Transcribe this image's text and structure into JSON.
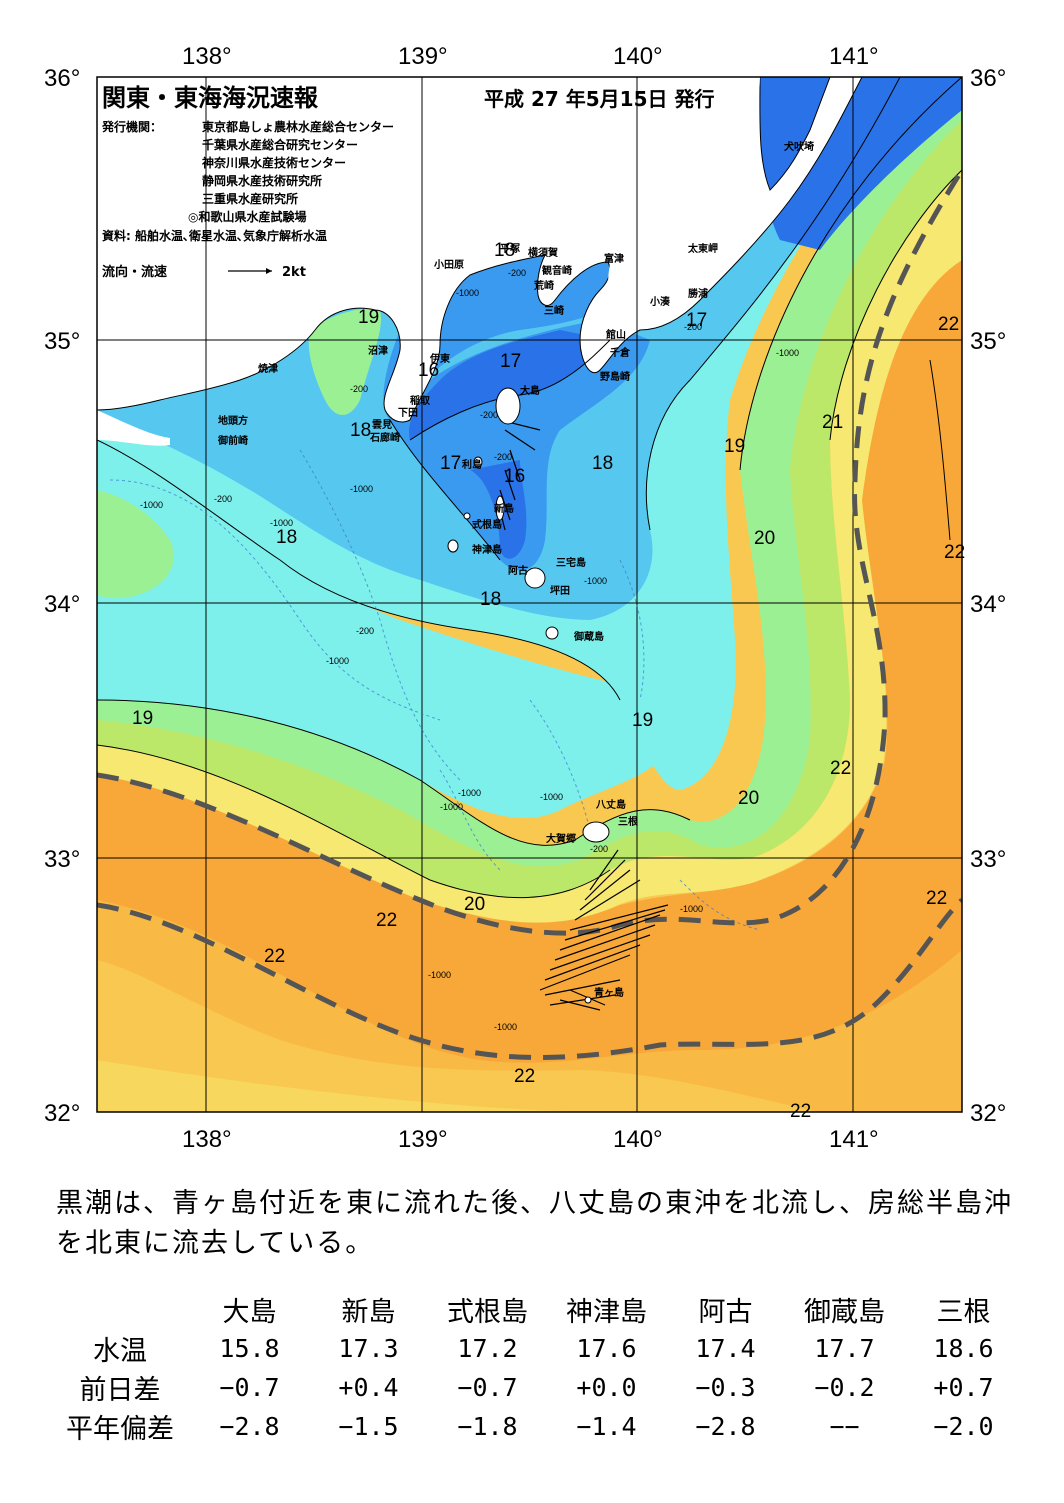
{
  "header": {
    "title": "関東・東海海況速報",
    "date": "平成 27 年5月15日 発行",
    "issuer_label": "発行機関：",
    "issuers": [
      "東京都島しょ農林水産総合センター",
      "千葉県水産総合研究センター",
      "神奈川県水産技術センター",
      "静岡県水産技術研究所",
      "三重県水産研究所",
      "◎和歌山県水産試験場"
    ],
    "source": "資料: 船舶水温､衛星水温､気象庁解析水温",
    "legend_label": "流向・流速",
    "legend_speed": "2kt"
  },
  "axes": {
    "lon_labels": [
      "138°",
      "139°",
      "140°",
      "141°"
    ],
    "lat_labels": [
      "36°",
      "35°",
      "34°",
      "33°",
      "32°"
    ]
  },
  "places": [
    {
      "id": "inubosaki",
      "name": "犬吠埼"
    },
    {
      "id": "taitomisaki",
      "name": "太東岬"
    },
    {
      "id": "katsuura",
      "name": "勝浦"
    },
    {
      "id": "kominato",
      "name": "小湊"
    },
    {
      "id": "futtsu",
      "name": "富津"
    },
    {
      "id": "yokosuka",
      "name": "横須賀"
    },
    {
      "id": "kannonzaki",
      "name": "観音崎"
    },
    {
      "id": "arasaki",
      "name": "荒崎"
    },
    {
      "id": "misaki",
      "name": "三崎"
    },
    {
      "id": "tateyama",
      "name": "館山"
    },
    {
      "id": "chikura",
      "name": "千倉"
    },
    {
      "id": "nojimazaki",
      "name": "野島崎"
    },
    {
      "id": "odawara",
      "name": "小田原"
    },
    {
      "id": "hiratsuka",
      "name": "平塚"
    },
    {
      "id": "ito",
      "name": "伊東"
    },
    {
      "id": "inatori",
      "name": "稲取"
    },
    {
      "id": "shimoda",
      "name": "下田"
    },
    {
      "id": "kumomi",
      "name": "雲見"
    },
    {
      "id": "irozaki",
      "name": "石廊崎"
    },
    {
      "id": "numazu",
      "name": "沼津"
    },
    {
      "id": "yaizu",
      "name": "焼津"
    },
    {
      "id": "jitogata",
      "name": "地頭方"
    },
    {
      "id": "omaezaki",
      "name": "御前崎"
    },
    {
      "id": "oshima",
      "name": "大島"
    },
    {
      "id": "toshima",
      "name": "利島"
    },
    {
      "id": "niijima",
      "name": "新島"
    },
    {
      "id": "shikinejima",
      "name": "式根島"
    },
    {
      "id": "kozushima",
      "name": "神津島"
    },
    {
      "id": "ako",
      "name": "阿古"
    },
    {
      "id": "miyakejima",
      "name": "三宅島"
    },
    {
      "id": "tsubota",
      "name": "坪田"
    },
    {
      "id": "mikurajima",
      "name": "御蔵島"
    },
    {
      "id": "hachijojima",
      "name": "八丈島"
    },
    {
      "id": "mitsune",
      "name": "三根"
    },
    {
      "id": "okago",
      "name": "大賀郷"
    },
    {
      "id": "aogashima",
      "name": "青ヶ島"
    }
  ],
  "isotherm_labels": [
    "16",
    "16",
    "17",
    "17",
    "17",
    "18",
    "18",
    "18",
    "18",
    "18",
    "19",
    "19",
    "19",
    "19",
    "20",
    "20",
    "20",
    "21",
    "22",
    "22",
    "22",
    "22",
    "22",
    "22",
    "22",
    "22"
  ],
  "depth_labels": [
    "-200",
    "-200",
    "-200",
    "-200",
    "-200",
    "-200",
    "-200",
    "-200",
    "-1000",
    "-1000",
    "-1000",
    "-1000",
    "-1000",
    "-1000",
    "-1000",
    "-1000",
    "-1000",
    "-1000",
    "-1000",
    "-1000",
    "-1000"
  ],
  "colors": {
    "t16": "#2a72e8",
    "t17": "#3a9af0",
    "t18": "#56c8f0",
    "t18b": "#7ef0ec",
    "t19": "#9cf094",
    "t19b": "#6ee880",
    "t20": "#bce86a",
    "t21": "#f6e870",
    "t21b": "#f8c850",
    "t22": "#f8a838",
    "t22b": "#f49a28",
    "land": "#ffffff",
    "kuroshio": "#555555"
  },
  "summary": "黒潮は、青ヶ島付近を東に流れた後、八丈島の東沖を北流し、房総半島沖を北東に流去している。",
  "stats": {
    "columns": [
      "大島",
      "新島",
      "式根島",
      "神津島",
      "阿古",
      "御蔵島",
      "三根"
    ],
    "rows": [
      {
        "label": "水温",
        "values": [
          "15.8",
          "17.3",
          "17.2",
          "17.6",
          "17.4",
          "17.7",
          "18.6"
        ]
      },
      {
        "label": "前日差",
        "values": [
          "−0.7",
          "+0.4",
          "−0.7",
          "+0.0",
          "−0.3",
          "−0.2",
          "+0.7"
        ]
      },
      {
        "label": "平年偏差",
        "values": [
          "−2.8",
          "−1.5",
          "−1.8",
          "−1.4",
          "−2.8",
          "−−",
          "−2.0"
        ]
      }
    ]
  }
}
